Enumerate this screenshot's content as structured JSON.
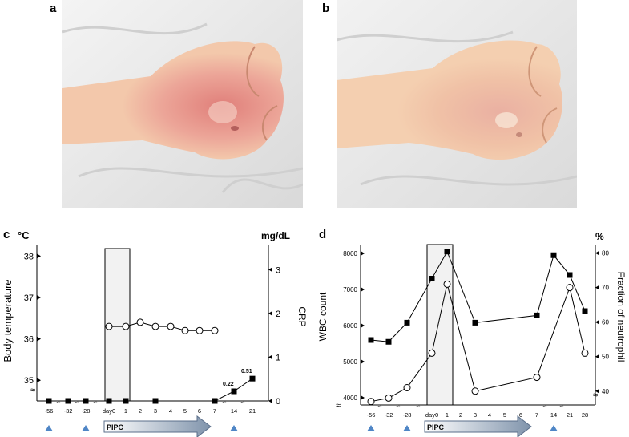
{
  "panels": {
    "a": "a",
    "b": "b",
    "c": "c",
    "d": "d"
  },
  "colors": {
    "skin_light": "#f1c7a8",
    "skin_red": "#e8928a",
    "sheet": "#ececec",
    "arrow_start": "#ffffff",
    "arrow_end": "#7f93ab",
    "box_fill": "#f2f2f2"
  },
  "chart_data": [
    {
      "type": "line",
      "panel": "c",
      "left_unit": "°C",
      "right_unit": "mg/dL",
      "ylabel": "Body temperature",
      "y2label": "CRP",
      "x_ticks": [
        "-56",
        "-32",
        "-28",
        "day0",
        "1",
        "2",
        "3",
        "4",
        "5",
        "6",
        "7",
        "14",
        "21"
      ],
      "y_ticks": [
        "38",
        "37",
        "36",
        "35"
      ],
      "y2_ticks": [
        "3",
        "2",
        "1",
        "0"
      ],
      "ylim": [
        34.5,
        38.2
      ],
      "y2lim": [
        0,
        3.5
      ],
      "series": [
        {
          "marker": "open-circle",
          "axis": "left",
          "x": [
            "day0",
            "1",
            "2",
            "3",
            "4",
            "5",
            "6",
            "7"
          ],
          "values": [
            36.3,
            36.3,
            36.4,
            36.3,
            36.3,
            36.2,
            36.2,
            36.2
          ]
        },
        {
          "marker": "filled-square",
          "axis": "right",
          "x": [
            "-56",
            "-32",
            "-28",
            "day0",
            "1",
            "3",
            "7",
            "14",
            "21"
          ],
          "values": [
            0,
            0,
            0,
            0,
            0,
            0,
            0,
            0.22,
            0.51
          ]
        }
      ],
      "annotations": [
        "0.22",
        "0.51"
      ],
      "shaded_region": [
        "day0",
        "1"
      ],
      "arrow_label": "PIPC",
      "markers_triangles_at": [
        "-56",
        "-28",
        "14"
      ]
    },
    {
      "type": "line",
      "panel": "d",
      "ylabel": "WBC count",
      "y2label": "Fraction of neutrophil",
      "right_unit": "%",
      "x_ticks": [
        "-56",
        "-32",
        "-28",
        "day0",
        "1",
        "2",
        "3",
        "4",
        "5",
        "6",
        "7",
        "14",
        "21",
        "28"
      ],
      "y_ticks": [
        "8000",
        "7000",
        "6000",
        "5000",
        "4000"
      ],
      "y2_ticks": [
        "80",
        "70",
        "60",
        "50",
        "40"
      ],
      "ylim": [
        3800,
        8200
      ],
      "y2lim": [
        36,
        82
      ],
      "series": [
        {
          "marker": "filled-square",
          "axis": "left",
          "x": [
            "-56",
            "-32",
            "-28",
            "day0",
            "1",
            "3",
            "7",
            "14",
            "21",
            "28"
          ],
          "values": [
            5600,
            5550,
            6080,
            7300,
            8050,
            6080,
            6280,
            7950,
            7400,
            6400
          ]
        },
        {
          "marker": "open-circle",
          "axis": "right",
          "x": [
            "-56",
            "-32",
            "-28",
            "day0",
            "1",
            "3",
            "7",
            "21",
            "28"
          ],
          "values": [
            37,
            38,
            41,
            51,
            71,
            40,
            44,
            70,
            51
          ]
        }
      ],
      "shaded_region": [
        "day0",
        "1"
      ],
      "arrow_label": "PIPC",
      "markers_triangles_at": [
        "-56",
        "-28",
        "14"
      ]
    }
  ]
}
